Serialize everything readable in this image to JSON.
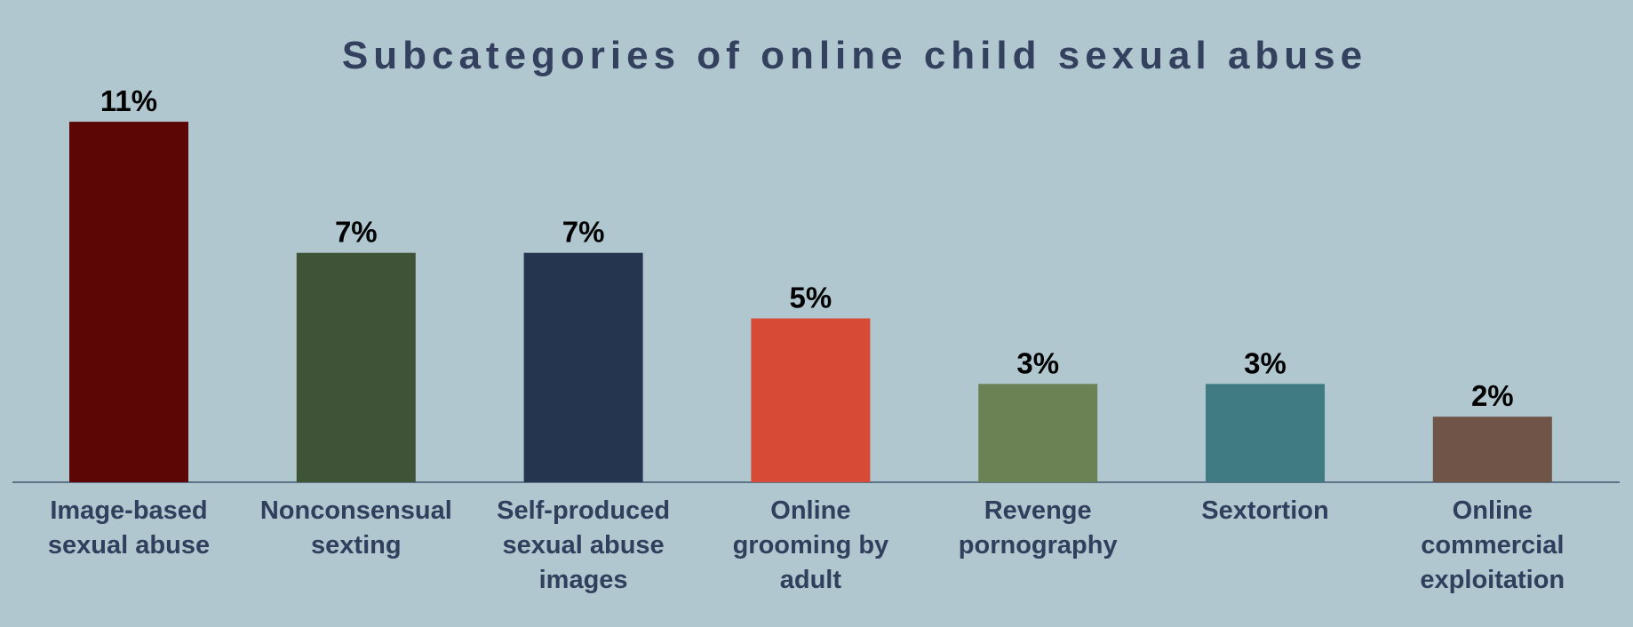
{
  "chart_data": {
    "type": "bar",
    "title": "Subcategories of online child sexual abuse",
    "categories": [
      "Image-based sexual abuse",
      "Nonconsensual sexting",
      "Self-produced sexual abuse images",
      "Online grooming by adult",
      "Revenge pornography",
      "Sextortion",
      "Online commercial exploitation"
    ],
    "values": [
      11,
      7,
      7,
      5,
      3,
      3,
      2
    ],
    "value_labels": [
      "11%",
      "7%",
      "7%",
      "5%",
      "3%",
      "3%",
      "2%"
    ],
    "colors": [
      "#5c0606",
      "#3f5437",
      "#26354f",
      "#d64a36",
      "#6b8254",
      "#3f7b80",
      "#6f5447"
    ]
  }
}
